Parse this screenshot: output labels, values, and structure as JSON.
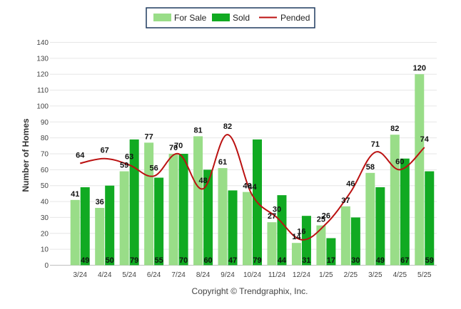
{
  "chart_data": {
    "type": "bar",
    "categories": [
      "3/24",
      "4/24",
      "5/24",
      "6/24",
      "7/24",
      "8/24",
      "9/24",
      "10/24",
      "11/24",
      "12/24",
      "1/25",
      "2/25",
      "3/25",
      "4/25",
      "5/25"
    ],
    "series": [
      {
        "name": "For Sale",
        "type": "bar",
        "color": "#99dd88",
        "values": [
          41,
          36,
          59,
          77,
          70,
          81,
          61,
          46,
          27,
          14,
          25,
          37,
          58,
          82,
          120
        ]
      },
      {
        "name": "Sold",
        "type": "bar",
        "color": "#11aa22",
        "values": [
          49,
          50,
          79,
          55,
          70,
          60,
          47,
          79,
          44,
          31,
          17,
          30,
          49,
          67,
          59
        ]
      },
      {
        "name": "Pended",
        "type": "line",
        "color": "#bb1111",
        "values": [
          64,
          67,
          63,
          56,
          70,
          48,
          82,
          44,
          30,
          16,
          26,
          46,
          71,
          60,
          74
        ]
      }
    ],
    "ylabel": "Number of Homes",
    "xlabel": "",
    "ylim": [
      0,
      140
    ],
    "yticks": [
      0,
      10,
      20,
      30,
      40,
      50,
      60,
      70,
      80,
      90,
      100,
      110,
      120,
      130,
      140
    ],
    "grid": true,
    "legend": "top-center"
  },
  "credit": "Copyright © Trendgraphix, Inc."
}
